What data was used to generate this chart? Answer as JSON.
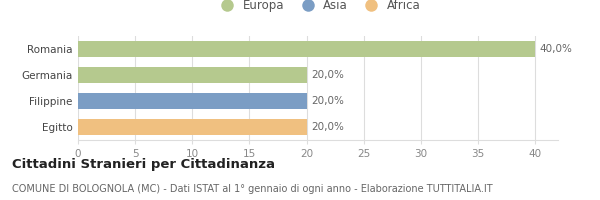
{
  "categories": [
    "Romania",
    "Germania",
    "Filippine",
    "Egitto"
  ],
  "values": [
    40.0,
    20.0,
    20.0,
    20.0
  ],
  "colors": [
    "#b5c98e",
    "#b5c98e",
    "#7b9dc4",
    "#f0c080"
  ],
  "labels": [
    "40,0%",
    "20,0%",
    "20,0%",
    "20,0%"
  ],
  "xlim": [
    0,
    42
  ],
  "xticks": [
    0,
    5,
    10,
    15,
    20,
    25,
    30,
    35,
    40
  ],
  "legend_entries": [
    "Europa",
    "Asia",
    "Africa"
  ],
  "legend_colors": [
    "#b5c98e",
    "#7b9dc4",
    "#f0c080"
  ],
  "background_color": "#ffffff",
  "grid_color": "#dddddd",
  "label_fontsize": 7.5,
  "tick_fontsize": 7.5,
  "legend_fontsize": 8.5,
  "title_fontsize": 9.5,
  "subtitle_fontsize": 7.0,
  "title_bold": "Cittadini Stranieri per Cittadinanza",
  "subtitle": "COMUNE DI BOLOGNOLA (MC) - Dati ISTAT al 1° gennaio di ogni anno - Elaborazione TUTTITALIA.IT"
}
